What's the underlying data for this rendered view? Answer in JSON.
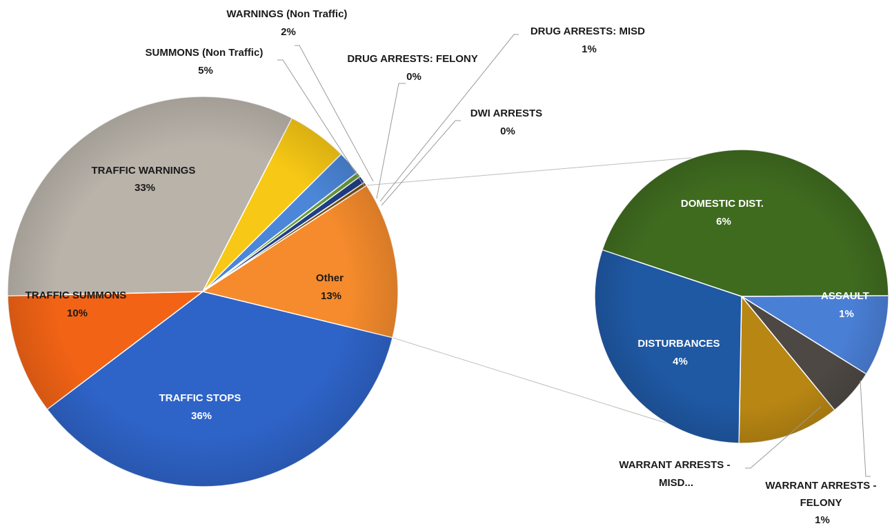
{
  "chart_data": {
    "type": "pie",
    "subtype": "pie-of-pie",
    "main_pie": {
      "slices": [
        {
          "label": "Other",
          "value_label": "13%",
          "value": 13,
          "color": "#f58b2c",
          "label_color": "dark"
        },
        {
          "label": "TRAFFIC STOPS",
          "value_label": "36%",
          "value": 36,
          "color": "#2e63c7",
          "label_color": "light"
        },
        {
          "label": "TRAFFIC SUMMONS",
          "value_label": "10%",
          "value": 10,
          "color": "#f26315",
          "label_color": "dark"
        },
        {
          "label": "TRAFFIC WARNINGS",
          "value_label": "33%",
          "value": 33,
          "color": "#b9b3aa",
          "label_color": "dark"
        },
        {
          "label": "SUMMONS (Non Traffic)",
          "value_label": "5%",
          "value": 5,
          "color": "#f7c815",
          "label_color": "dark"
        },
        {
          "label": "WARNINGS (Non Traffic)",
          "value_label": "2%",
          "value": 2,
          "color": "#4b86d8",
          "label_color": "dark"
        },
        {
          "label": "DRUG ARRESTS:  FELONY",
          "value_label": "0%",
          "value": 0.4,
          "color": "#6a9a3a",
          "label_color": "dark"
        },
        {
          "label": "DRUG ARRESTS:  MISD",
          "value_label": "1%",
          "value": 0.6,
          "color": "#1f3f86",
          "label_color": "dark"
        },
        {
          "label": "DWI ARRESTS",
          "value_label": "0%",
          "value": 0.3,
          "color": "#7a4f14",
          "label_color": "dark"
        }
      ]
    },
    "secondary_pie": {
      "source_slice": "Other",
      "slices": [
        {
          "label": "DOMESTIC DIST.",
          "value_label": "6%",
          "value": 6,
          "color": "#3f6b1f",
          "label_color": "light"
        },
        {
          "label": "ASSAULT",
          "value_label": "1%",
          "value": 1.2,
          "color": "#4a7fd6",
          "label_color": "light"
        },
        {
          "label": "WARRANT ARRESTS - FELONY",
          "value_label": "1%",
          "value": 0.7,
          "color": "#4d4843",
          "label_color": "dark"
        },
        {
          "label": "WARRANT ARRESTS - MISD...",
          "value_label": "",
          "value": 1.5,
          "color": "#b88613",
          "label_color": "dark"
        },
        {
          "label": "DISTURBANCES",
          "value_label": "4%",
          "value": 4,
          "color": "#1f58a3",
          "label_color": "light"
        }
      ]
    }
  },
  "labels": {
    "other": {
      "name": "Other",
      "pct": "13%"
    },
    "traffic_stops": {
      "name": "TRAFFIC STOPS",
      "pct": "36%"
    },
    "traffic_summons": {
      "name": "TRAFFIC SUMMONS",
      "pct": "10%"
    },
    "traffic_warnings": {
      "name": "TRAFFIC WARNINGS",
      "pct": "33%"
    },
    "summons_non_traffic": {
      "name": "SUMMONS (Non Traffic)",
      "pct": "5%"
    },
    "warnings_non_traffic": {
      "name": "WARNINGS (Non Traffic)",
      "pct": "2%"
    },
    "drug_felony": {
      "name": "DRUG ARRESTS:  FELONY",
      "pct": "0%"
    },
    "drug_misd": {
      "name": "DRUG ARRESTS:  MISD",
      "pct": "1%"
    },
    "dwi": {
      "name": "DWI ARRESTS",
      "pct": "0%"
    },
    "domestic": {
      "name": "DOMESTIC DIST.",
      "pct": "6%"
    },
    "assault": {
      "name": "ASSAULT",
      "pct": "1%"
    },
    "disturbances": {
      "name": "DISTURBANCES",
      "pct": "4%"
    },
    "warrant_misd": {
      "name_line1": "WARRANT ARRESTS -",
      "name_line2": "MISD..."
    },
    "warrant_felony": {
      "name_line1": "WARRANT ARRESTS -",
      "name_line2": "FELONY",
      "pct": "1%"
    }
  }
}
